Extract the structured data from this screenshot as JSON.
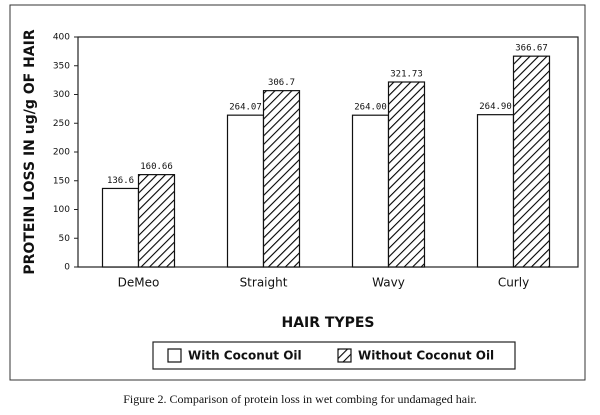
{
  "chart_data": {
    "type": "bar",
    "y_label": "PROTEIN LOSS IN ug/g OF HAIR",
    "x_label": "HAIR TYPES",
    "caption": "Figure 2. Comparison of protein loss in wet combing for undamaged hair.",
    "categories": [
      "DeMeo",
      "Straight",
      "Wavy",
      "Curly"
    ],
    "series": [
      {
        "name": "With Coconut Oil",
        "color": "#ffffff",
        "hatched": false,
        "values": [
          136.6,
          264.07,
          264.0,
          264.9
        ],
        "value_labels": [
          "136.6",
          "264.07",
          "264.00",
          "264.90"
        ]
      },
      {
        "name": "Without Coconut Oil",
        "color": "#000000",
        "hatched": true,
        "values": [
          160.66,
          306.7,
          321.73,
          366.67
        ],
        "value_labels": [
          "160.66",
          "306.7",
          "321.73",
          "366.67"
        ]
      }
    ],
    "ylim": [
      0,
      400
    ],
    "yticks": [
      0,
      50,
      100,
      150,
      200,
      250,
      300,
      350,
      400
    ],
    "grid": false
  }
}
